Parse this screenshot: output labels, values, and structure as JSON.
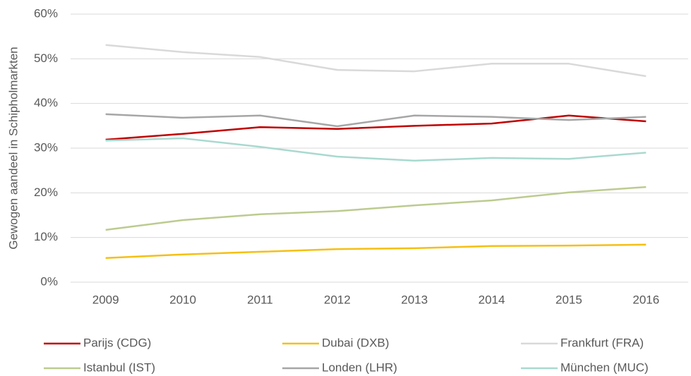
{
  "chart_data": {
    "type": "line",
    "y_label": "Gewogen aandeel in Schipholmarkten",
    "categories": [
      "2009",
      "2010",
      "2011",
      "2012",
      "2013",
      "2014",
      "2015",
      "2016"
    ],
    "ylim": [
      0,
      60
    ],
    "yticks": [
      {
        "value": 0,
        "label": "0%"
      },
      {
        "value": 10,
        "label": "10%"
      },
      {
        "value": 20,
        "label": "20%"
      },
      {
        "value": 30,
        "label": "30%"
      },
      {
        "value": 40,
        "label": "40%"
      },
      {
        "value": 50,
        "label": "50%"
      },
      {
        "value": 60,
        "label": "60%"
      }
    ],
    "grid": true,
    "legend": "bottom",
    "series": [
      {
        "name": "Parijs (CDG)",
        "color": "#c00000",
        "values": [
          31.9,
          33.2,
          34.7,
          34.3,
          35.0,
          35.5,
          37.3,
          36.0
        ]
      },
      {
        "name": "Dubai (DXB)",
        "color": "#f5bf14",
        "values": [
          5.4,
          6.2,
          6.8,
          7.4,
          7.6,
          8.1,
          8.2,
          8.4
        ]
      },
      {
        "name": "Frankfurt (FRA)",
        "color": "#d9d9d9",
        "values": [
          53.1,
          51.5,
          50.4,
          47.5,
          47.2,
          48.9,
          48.9,
          46.1
        ]
      },
      {
        "name": "Istanbul (IST)",
        "color": "#bccb8f",
        "values": [
          11.7,
          13.9,
          15.2,
          15.9,
          17.2,
          18.3,
          20.1,
          21.3
        ]
      },
      {
        "name": "Londen (LHR)",
        "color": "#a6a6a6",
        "values": [
          37.6,
          36.8,
          37.3,
          34.9,
          37.3,
          37.0,
          36.3,
          37.0
        ]
      },
      {
        "name": "München (MUC)",
        "color": "#a9d9cf",
        "values": [
          31.7,
          32.2,
          30.3,
          28.1,
          27.2,
          27.8,
          27.6,
          29.0
        ]
      }
    ]
  }
}
